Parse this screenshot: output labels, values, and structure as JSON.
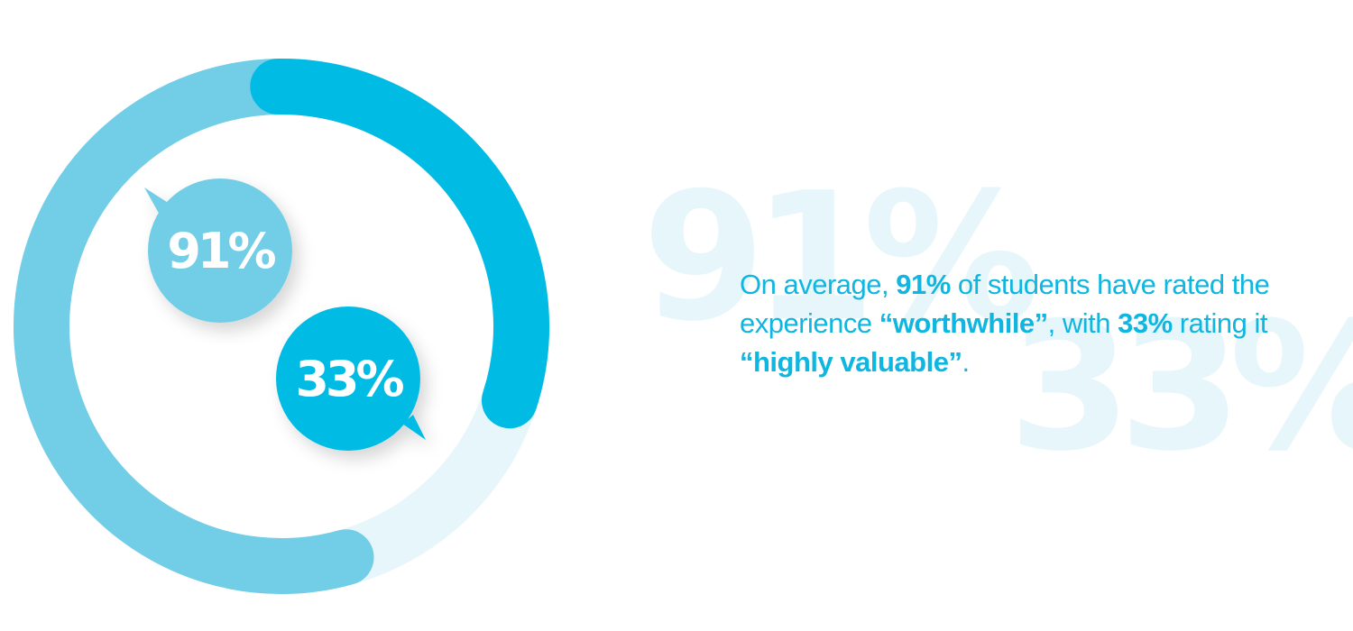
{
  "chart_data": {
    "type": "pie",
    "categories": [
      "worthwhile",
      "highly valuable"
    ],
    "values": [
      91,
      33
    ],
    "value_labels": [
      "91%",
      "33%"
    ],
    "unit": "%",
    "max": 100,
    "legend": "none",
    "grid": false,
    "colors": {
      "outer_ring": "#72cde6",
      "inner_ring": "#00bbe4",
      "track": "#e7f6fb",
      "label_text": "#ffffff"
    }
  },
  "watermarks": [
    "91%",
    "33%"
  ],
  "caption": {
    "part1": "On average, ",
    "stat1": "91%",
    "part2": " of students have rated the experience ",
    "quote1": "“worthwhile”",
    "part3": ", with ",
    "stat2": "33%",
    "part4": " rating it ",
    "quote2": "“highly valuable”",
    "part5": "."
  },
  "colors": {
    "caption_text": "#0fb6e0",
    "watermark": "#e6f6fb"
  }
}
